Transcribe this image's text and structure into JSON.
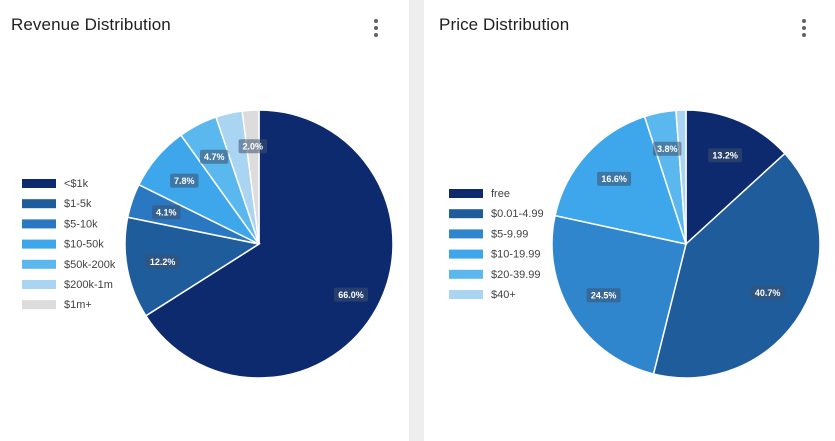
{
  "chart_data": [
    {
      "type": "pie",
      "title": "Revenue Distribution",
      "categories": [
        "<$1k",
        "$1-5k",
        "$5-10k",
        "$10-50k",
        "$50k-200k",
        "$200k-1m",
        "$1m+"
      ],
      "values": [
        66.0,
        12.2,
        4.1,
        7.8,
        4.7,
        3.2,
        2.0
      ],
      "data_labels": [
        "66.0%",
        "12.2%",
        "4.1%",
        "7.8%",
        "4.7%",
        "",
        "2.0%"
      ],
      "colors": [
        "#0d2a6e",
        "#1f5c9c",
        "#2a78c2",
        "#3ea6ea",
        "#5ab8ee",
        "#a9d4f2",
        "#dcdcdc"
      ],
      "legend_position": "left"
    },
    {
      "type": "pie",
      "title": "Price Distribution",
      "categories": [
        "free",
        "$0.01-4.99",
        "$5-9.99",
        "$10-19.99",
        "$20-39.99",
        "$40+"
      ],
      "values": [
        13.2,
        40.7,
        24.5,
        16.6,
        3.8,
        1.2
      ],
      "data_labels": [
        "13.2%",
        "40.7%",
        "24.5%",
        "16.6%",
        "3.8%",
        ""
      ],
      "colors": [
        "#0d2a6e",
        "#1f5c9c",
        "#2f86cc",
        "#3ea6ea",
        "#5ab8ee",
        "#a9d4f2"
      ],
      "legend_position": "left"
    }
  ],
  "menu_icon": "more-vert-icon"
}
